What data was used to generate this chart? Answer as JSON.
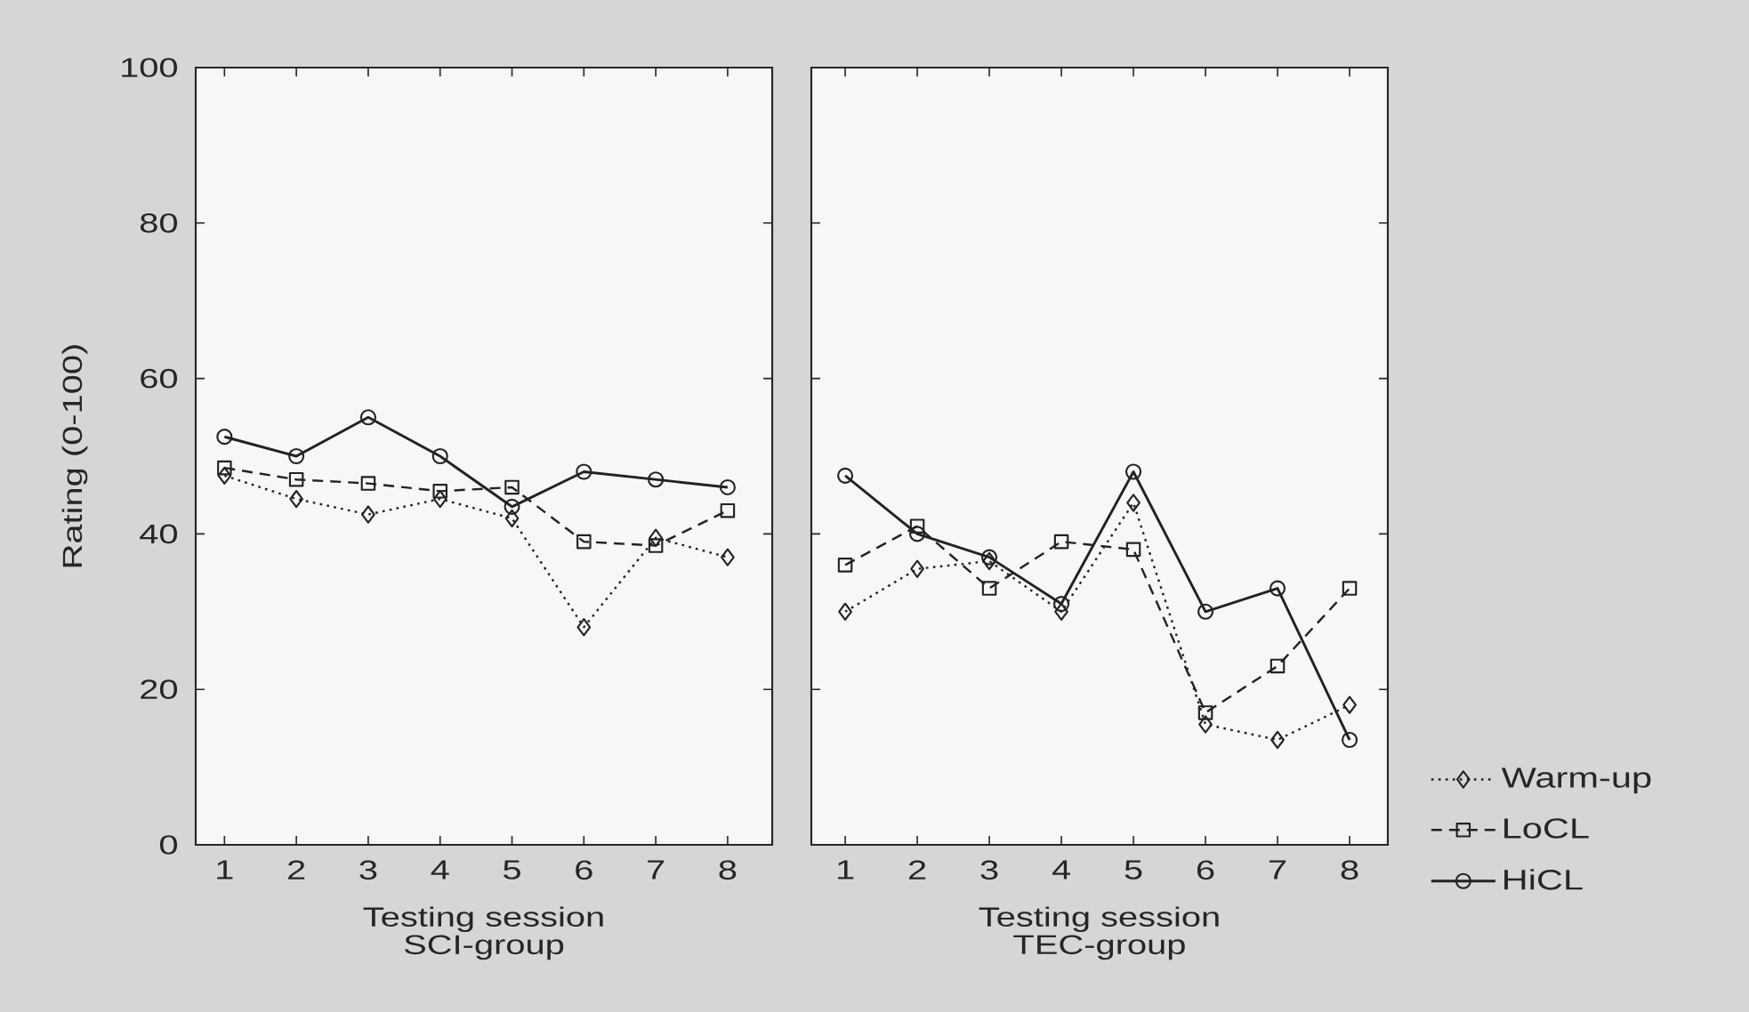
{
  "chart_data": [
    {
      "type": "line",
      "title": "SCI-group",
      "xlabel": "Testing session",
      "ylabel": "Rating (0-100)",
      "categories": [
        "1",
        "2",
        "3",
        "4",
        "5",
        "6",
        "7",
        "8"
      ],
      "ylim": [
        0,
        100
      ],
      "yticks": [
        0,
        20,
        40,
        60,
        80,
        100
      ],
      "series": [
        {
          "color": "#222222",
          "marker": "diamond",
          "line_style": "dotted",
          "values": [
            47.5,
            44.5,
            42.5,
            44.5,
            42,
            28,
            39.5,
            37
          ]
        },
        {
          "color": "#222222",
          "marker": "square",
          "line_style": "dashed",
          "values": [
            48.5,
            47,
            46.5,
            45.5,
            46,
            39,
            38.5,
            43
          ]
        },
        {
          "color": "#222222",
          "marker": "circle",
          "line_style": "solid",
          "values": [
            52.5,
            50,
            55,
            50,
            43.5,
            48,
            47,
            46
          ]
        }
      ]
    },
    {
      "type": "line",
      "title": "TEC-group",
      "xlabel": "Testing session",
      "categories": [
        "1",
        "2",
        "3",
        "4",
        "5",
        "6",
        "7",
        "8"
      ],
      "ylim": [
        0,
        100
      ],
      "yticks": [
        0,
        20,
        40,
        60,
        80,
        100
      ],
      "tick_labels": "x",
      "legend": "bottom right",
      "series": [
        {
          "name": "Warm-up",
          "color": "#222222",
          "marker": "diamond",
          "line_style": "dotted",
          "values": [
            30,
            35.5,
            36.5,
            30,
            44,
            15.5,
            13.5,
            18
          ]
        },
        {
          "name": "LoCL",
          "color": "#222222",
          "marker": "square",
          "line_style": "dashed",
          "values": [
            36,
            41,
            33,
            39,
            38,
            17,
            23,
            33
          ]
        },
        {
          "name": "HiCL",
          "color": "#222222",
          "marker": "circle",
          "line_style": "solid",
          "values": [
            47.5,
            40,
            37,
            31,
            48,
            30,
            33,
            13.5
          ]
        }
      ]
    }
  ]
}
